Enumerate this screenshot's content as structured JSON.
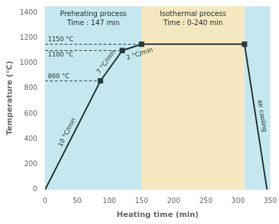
{
  "chart_data": {
    "type": "line",
    "xlabel": "Heating time (min)",
    "ylabel": "Temperature (°C)",
    "xlim": [
      0,
      350
    ],
    "ylim": [
      0,
      1450
    ],
    "xticks": [
      0,
      50,
      100,
      150,
      200,
      250,
      300,
      350
    ],
    "yticks": [
      0,
      200,
      400,
      600,
      800,
      1000,
      1200,
      1400
    ],
    "grid": false,
    "regions": [
      {
        "x": [
          0,
          150
        ],
        "color": "#c5e8f0",
        "texts": [
          "Preheating process",
          "Time : 147 min"
        ]
      },
      {
        "x": [
          150,
          310
        ],
        "color": "#f5e8c0",
        "texts": [
          "Isothermal process",
          "Time : 0-240 min"
        ]
      },
      {
        "x": [
          310,
          350
        ],
        "color": "#c5e8f0"
      }
    ],
    "series": [
      {
        "type": "line",
        "x": [
          0,
          86,
          120,
          150,
          310,
          345
        ],
        "values": [
          0,
          860,
          1100,
          1150,
          1150,
          0
        ],
        "color": "#1a2a2a",
        "line_style": "solid",
        "segment_labels": [
          "10 °C/min",
          "7 °C/min",
          "2 °C/min",
          null,
          "air cooling"
        ]
      },
      {
        "type": "scatter",
        "x": [
          86,
          120,
          150,
          310
        ],
        "values": [
          860,
          1100,
          1150,
          1150
        ],
        "color": "#2a3a3a",
        "marker": "square"
      },
      {
        "type": "line",
        "x": [
          0,
          86
        ],
        "values": [
          860,
          860
        ],
        "color": "#1a2a2a",
        "line_style": "dashed",
        "label": "860 °C"
      },
      {
        "type": "line",
        "x": [
          0,
          120
        ],
        "values": [
          1100,
          1100
        ],
        "color": "#1a2a2a",
        "line_style": "dashed",
        "label": "1100 °C"
      },
      {
        "type": "line",
        "x": [
          0,
          150
        ],
        "values": [
          1150,
          1150
        ],
        "color": "#1a2a2a",
        "line_style": "dashed",
        "label": "1150 °C"
      }
    ]
  }
}
